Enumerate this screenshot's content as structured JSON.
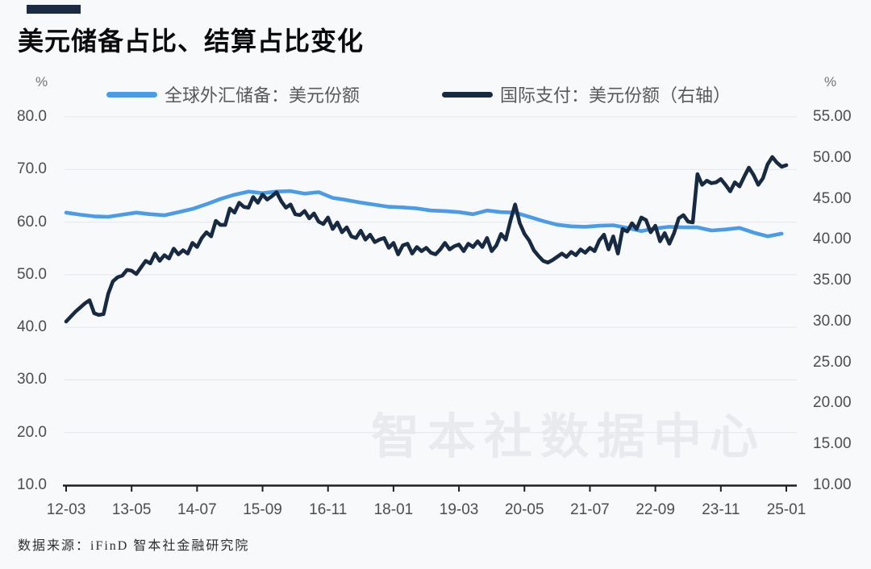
{
  "title": "美元储备占比、结算占比变化",
  "accent_color": "#1b2b45",
  "left_axis_unit": "%",
  "right_axis_unit": "%",
  "watermark": "智本社数据中心",
  "source_note": "数据来源：iFinD 智本社金融研究院",
  "legend": [
    {
      "label": "全球外汇储备：美元份额",
      "color": "#4a9be8"
    },
    {
      "label": "国际支付：美元份额（右轴）",
      "color": "#172a42"
    }
  ],
  "chart_data": {
    "type": "line",
    "title": "美元储备占比、结算占比变化",
    "xlabel": "",
    "ylabel_left": "%",
    "ylabel_right": "%",
    "grid": "horizontal",
    "legend_position": "top",
    "months_total": 154,
    "x_tick_months": [
      0,
      14,
      28,
      42,
      56,
      70,
      84,
      98,
      112,
      126,
      140,
      154
    ],
    "x_tick_labels": [
      "12-03",
      "13-05",
      "14-07",
      "15-09",
      "16-11",
      "18-01",
      "19-03",
      "20-05",
      "21-07",
      "22-09",
      "23-11",
      "25-01"
    ],
    "left_axis": {
      "min": 10,
      "max": 80,
      "tick_values": [
        80,
        70,
        60,
        50,
        40,
        30,
        20,
        10
      ],
      "tick_labels": [
        "80.0",
        "70.0",
        "60.0",
        "50.0",
        "40.0",
        "30.0",
        "20.0",
        "10.0"
      ]
    },
    "right_axis": {
      "min": 10,
      "max": 55,
      "tick_values": [
        55,
        50,
        45,
        40,
        35,
        30,
        25,
        20,
        15,
        10
      ],
      "tick_labels": [
        "55.00",
        "50.00",
        "45.00",
        "40.00",
        "35.00",
        "30.00",
        "25.00",
        "20.00",
        "15.00",
        "10.00"
      ]
    },
    "series": [
      {
        "name": "全球外汇储备：美元份额",
        "axis": "left",
        "color": "#4a9be8",
        "frequency": "quarterly",
        "start_period": "2012-03",
        "start_month": 0,
        "month_step": 3,
        "values": [
          61.8,
          61.4,
          61.1,
          61.0,
          61.4,
          61.8,
          61.5,
          61.3,
          61.9,
          62.5,
          63.4,
          64.4,
          65.2,
          65.8,
          65.5,
          65.8,
          65.9,
          65.4,
          65.7,
          64.6,
          64.2,
          63.7,
          63.3,
          62.9,
          62.8,
          62.6,
          62.2,
          62.1,
          61.9,
          61.5,
          62.2,
          61.9,
          61.8,
          61.0,
          60.2,
          59.5,
          59.2,
          59.1,
          59.3,
          59.4,
          58.9,
          58.3,
          58.8,
          59.1,
          59.0,
          59.0,
          58.4,
          58.6,
          58.9,
          58.0,
          57.3,
          57.8
        ]
      },
      {
        "name": "国际支付：美元份额（右轴）",
        "axis": "right",
        "color": "#172a42",
        "frequency": "monthly",
        "start_period": "2012-03",
        "start_month": 0,
        "month_step": 1,
        "values": [
          30.0,
          30.6,
          31.2,
          31.7,
          32.2,
          32.6,
          31.0,
          30.8,
          30.9,
          33.4,
          34.9,
          35.4,
          35.6,
          36.3,
          36.2,
          35.8,
          36.6,
          37.4,
          37.1,
          38.3,
          37.4,
          38.1,
          37.7,
          38.9,
          38.2,
          38.7,
          38.3,
          39.6,
          39.1,
          40.2,
          40.9,
          40.4,
          42.3,
          41.8,
          41.8,
          43.8,
          43.3,
          44.5,
          44.0,
          43.9,
          45.2,
          44.5,
          45.5,
          44.9,
          45.3,
          45.8,
          44.7,
          43.9,
          44.3,
          43.1,
          43.0,
          43.5,
          42.6,
          43.2,
          42.2,
          41.9,
          42.7,
          41.3,
          42.1,
          40.9,
          41.5,
          40.4,
          40.2,
          41.1,
          40.0,
          40.6,
          39.7,
          40.0,
          40.2,
          39.0,
          39.6,
          38.2,
          39.3,
          39.5,
          38.3,
          39.1,
          38.6,
          39.0,
          38.4,
          38.2,
          38.8,
          39.6,
          38.8,
          39.2,
          39.4,
          38.6,
          39.5,
          39.1,
          39.8,
          39.1,
          40.2,
          38.6,
          39.3,
          40.7,
          40.0,
          42.3,
          44.3,
          42.0,
          40.7,
          39.9,
          38.7,
          38.0,
          37.4,
          37.2,
          37.5,
          37.9,
          38.3,
          37.9,
          38.5,
          38.1,
          38.8,
          38.4,
          39.0,
          38.6,
          39.9,
          40.6,
          38.8,
          40.4,
          38.3,
          41.3,
          41.0,
          42.0,
          41.3,
          42.7,
          42.4,
          40.9,
          41.7,
          39.8,
          40.8,
          39.5,
          40.8,
          42.6,
          43.0,
          42.2,
          42.1,
          48.0,
          46.7,
          47.2,
          46.9,
          47.0,
          47.4,
          46.7,
          45.9,
          47.0,
          46.5,
          47.7,
          48.8,
          47.9,
          46.7,
          47.5,
          49.2,
          50.1,
          49.4,
          48.9,
          49.1
        ]
      }
    ]
  }
}
